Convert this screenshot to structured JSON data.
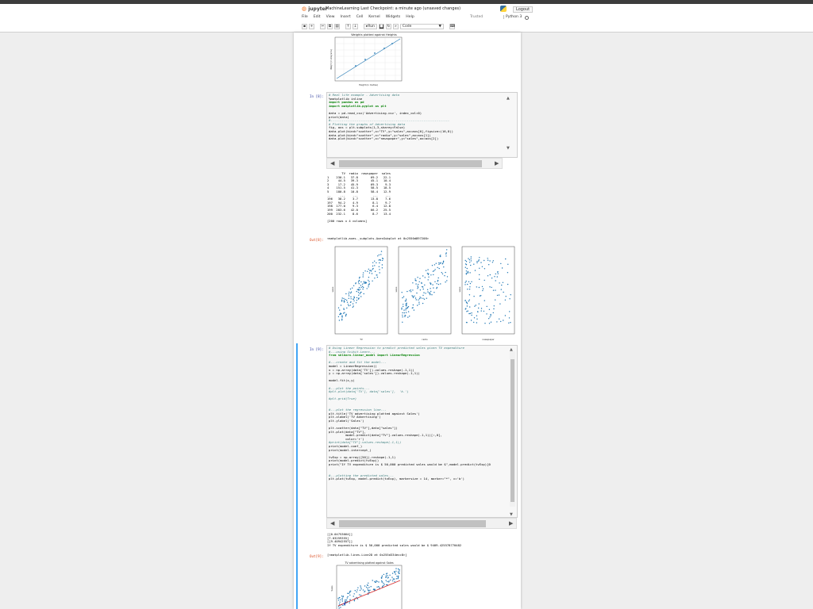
{
  "header": {
    "logo_text": "jupyter",
    "notebook_title": "MachineLearning Last Checkpoint: a minute ago (unsaved changes)",
    "logout": "Logout",
    "trusted": "Trusted",
    "kernel": "Python 3",
    "menu": [
      "File",
      "Edit",
      "View",
      "Insert",
      "Cell",
      "Kernel",
      "Widgets",
      "Help"
    ],
    "toolbar": {
      "run_label": "Run",
      "cell_type": "Code"
    }
  },
  "cells": {
    "first_output": {
      "chart_title": "Weights plotted against Heights",
      "xlabel": "Height (in metres)",
      "ylabel": "Weight (in kilograms)"
    },
    "cell8": {
      "in_prompt": "In [8]:",
      "out_prompt": "Out[8]:",
      "code_lines": [
        {
          "t": "# Real life example - Advertising data",
          "c": "cm"
        },
        {
          "t": "%matplotlib inline",
          "c": ""
        },
        {
          "t": "import pandas as pd",
          "c": "kw"
        },
        {
          "t": "import matplotlib.pyplot as plt",
          "c": "kw"
        },
        {
          "t": "",
          "c": ""
        },
        {
          "t": "data = pd.read_csv('Advertising.csv', index_col=0)",
          "c": ""
        },
        {
          "t": "print(data)",
          "c": ""
        },
        {
          "t": "#----------------------------------------------------------------",
          "c": "cm"
        },
        {
          "t": "# Plotting the graphs of Advertising data",
          "c": "cm"
        },
        {
          "t": "fig, axs = plt.subplots(1,3,sharey=False)",
          "c": ""
        },
        {
          "t": "data.plot(kind=\"scatter\",x=\"TV\",y=\"sales\",ax=axs[0],figsize=(16,8))",
          "c": ""
        },
        {
          "t": "data.plot(kind=\"scatter\",x=\"radio\",y=\"sales\",ax=axs[1])",
          "c": ""
        },
        {
          "t": "data.plot(kind=\"scatter\",x=\"newspaper\",y=\"sales\",ax=axs[2])",
          "c": ""
        }
      ],
      "table_lines": [
        "        TV  radio  newspaper  sales",
        "1    230.1   37.8       69.2   22.1",
        "2     44.5   39.3       45.1   10.4",
        "3     17.2   45.9       69.3    9.3",
        "4    151.5   41.3       58.5   18.5",
        "5    180.8   10.8       58.4   12.9",
        "..     ...    ...        ...    ...",
        "196   38.2    3.7       13.8    7.6",
        "197   94.2    4.9        8.1    9.7",
        "198  177.0    9.3        6.4   12.8",
        "199  283.6   42.0       66.2   25.5",
        "200  232.1    8.6        8.7   13.4",
        "",
        "[200 rows x 4 columns]"
      ],
      "out_text": "<matplotlib.axes._subplots.AxesSubplot at 0x2550d897208>",
      "subplot_labels": [
        {
          "x": "TV",
          "y": "sales"
        },
        {
          "x": "radio",
          "y": "sales"
        },
        {
          "x": "newspaper",
          "y": "sales"
        }
      ]
    },
    "cell9": {
      "in_prompt": "In [9]:",
      "out_prompt": "Out[9]:",
      "code_lines": [
        {
          "t": "# Using Linear Regression to predict predicted sales given TV expenditure",
          "c": "cm"
        },
        {
          "t": "#---using Scikit-Learn---",
          "c": "cm"
        },
        {
          "t": "from sklearn.linear_model import LinearRegression",
          "c": "kw"
        },
        {
          "t": "",
          "c": ""
        },
        {
          "t": "#---create and fit the model---",
          "c": "cm"
        },
        {
          "t": "model = LinearRegression()",
          "c": ""
        },
        {
          "t": "x = np.array(data['TV']).values.reshape(-1,1))",
          "c": ""
        },
        {
          "t": "y = np.array(data['sales']).values.reshape(-1,1))",
          "c": ""
        },
        {
          "t": "",
          "c": ""
        },
        {
          "t": "model.fit(x,y)",
          "c": ""
        },
        {
          "t": "",
          "c": ""
        },
        {
          "t": "#---plot the points---",
          "c": "cm"
        },
        {
          "t": "#plt.plot(data['TV'], data['sales'],  'k.')",
          "c": "cm"
        },
        {
          "t": "",
          "c": ""
        },
        {
          "t": "#plt.grid(True)",
          "c": "cm"
        },
        {
          "t": "",
          "c": ""
        },
        {
          "t": "",
          "c": ""
        },
        {
          "t": "#---plot the regression line---",
          "c": "cm"
        },
        {
          "t": "plt.title('TV advertising plotted against Sales')",
          "c": ""
        },
        {
          "t": "plt.xlabel('TV Advertising')",
          "c": ""
        },
        {
          "t": "plt.ylabel('Sales')",
          "c": ""
        },
        {
          "t": "",
          "c": ""
        },
        {
          "t": "plt.scatter(data[\"TV\"],data[\"sales\"])",
          "c": ""
        },
        {
          "t": "plt.plot(data[\"TV\"],",
          "c": ""
        },
        {
          "t": "         model.predict(data[\"TV\"].values.reshape(-1,1))[:,0],",
          "c": ""
        },
        {
          "t": "         color='r')",
          "c": ""
        },
        {
          "t": "#print(data[\"TV\"].values.reshape(-1,1))",
          "c": "cm"
        },
        {
          "t": "print(model.coef_)",
          "c": ""
        },
        {
          "t": "print(model.intercept_)",
          "c": ""
        },
        {
          "t": "",
          "c": ""
        },
        {
          "t": "tvExp = np.array([50]).reshape(-1,1)",
          "c": ""
        },
        {
          "t": "print(model.predict(tvExp))",
          "c": ""
        },
        {
          "t": "print(\"If TV expenditure is $ 50,000 predicted sales would be $\",model.predict(tvExp)[0",
          "c": ""
        },
        {
          "t": "",
          "c": ""
        },
        {
          "t": "",
          "c": ""
        },
        {
          "t": "#---plotting the predicted sales---",
          "c": "cm"
        },
        {
          "t": "plt.plot(tvExp, model.predict(tvExp), markersize = 14, marker=\"*\", c='b')",
          "c": ""
        }
      ],
      "output_lines": [
        "[[0.04753664]]",
        "[7.03259355]",
        "[[9.40942557]]",
        "If TV expenditure is $ 50,000 predicted sales would be $ 9409.425578770482"
      ],
      "out_text": "[<matplotlib.lines.Line2D at 0x255d334ecc8>]",
      "chart_title": "TV advertising plotted against Sales",
      "ylabel": "Sales"
    }
  }
}
